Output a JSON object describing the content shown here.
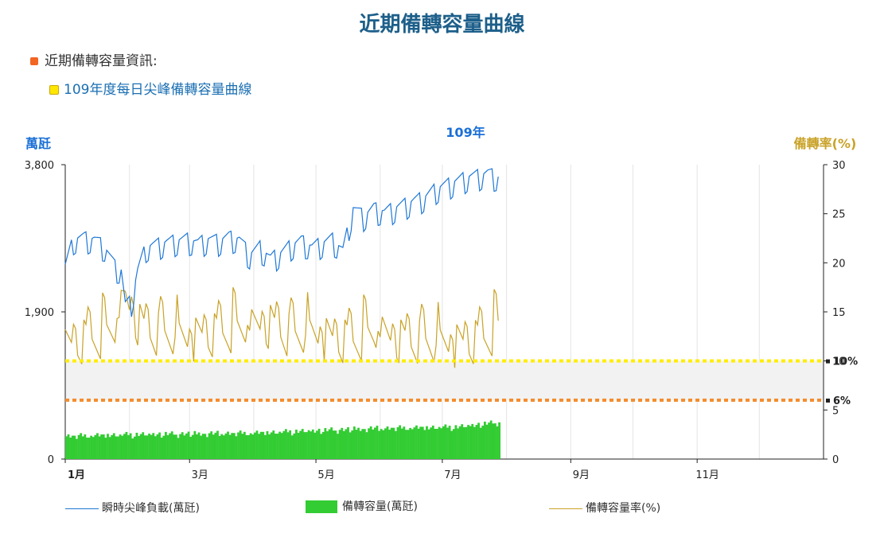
{
  "page": {
    "title": "近期備轉容量曲線",
    "info_label": "近期備轉容量資訊:",
    "sub_link": "109年度每日尖峰備轉容量曲線"
  },
  "colors": {
    "load_line": "#1f78d6",
    "reserve_bar": "#33cc33",
    "rate_line": "#c9a227",
    "line_10pct": "#ffee00",
    "line_6pct": "#f58d2e",
    "band": "#f2f2f2"
  },
  "chart_data": {
    "type": "bar+line",
    "title": "109年",
    "left_axis_label": "萬瓩",
    "right_axis_label": "備轉率(%)",
    "left_ylim": [
      0,
      3800
    ],
    "left_ticks": [
      "0",
      "1,900",
      "3,800"
    ],
    "right_ylim": [
      0,
      30
    ],
    "right_ticks": [
      "0",
      "5",
      "10",
      "15",
      "20",
      "25",
      "30"
    ],
    "x_ticks": [
      "1月",
      "3月",
      "5月",
      "7月",
      "9月",
      "11月"
    ],
    "reference_lines": [
      {
        "label": "10%",
        "value": 10
      },
      {
        "label": "6%",
        "value": 6
      }
    ],
    "grid": true,
    "legend_position": "bottom",
    "series": [
      {
        "name": "瞬時尖峰負載(萬瓩)",
        "axis": "left",
        "kind": "line",
        "anchors": [
          [
            1,
            2550
          ],
          [
            5,
            2900
          ],
          [
            10,
            2920
          ],
          [
            15,
            2900
          ],
          [
            20,
            2800
          ],
          [
            25,
            2550
          ],
          [
            28,
            2500
          ],
          [
            30,
            2050
          ],
          [
            33,
            2100
          ],
          [
            36,
            2500
          ],
          [
            40,
            2800
          ],
          [
            45,
            2830
          ],
          [
            50,
            2860
          ],
          [
            55,
            2880
          ],
          [
            60,
            2900
          ],
          [
            65,
            2850
          ],
          [
            70,
            2900
          ],
          [
            75,
            2880
          ],
          [
            80,
            2930
          ],
          [
            85,
            2900
          ],
          [
            90,
            2700
          ],
          [
            95,
            2800
          ],
          [
            100,
            2650
          ],
          [
            105,
            2720
          ],
          [
            110,
            2820
          ],
          [
            115,
            2880
          ],
          [
            120,
            2800
          ],
          [
            125,
            2850
          ],
          [
            130,
            2900
          ],
          [
            135,
            2750
          ],
          [
            140,
            3300
          ],
          [
            145,
            3200
          ],
          [
            150,
            3300
          ],
          [
            155,
            3250
          ],
          [
            160,
            3300
          ],
          [
            165,
            3350
          ],
          [
            170,
            3400
          ],
          [
            175,
            3450
          ],
          [
            180,
            3550
          ],
          [
            185,
            3600
          ],
          [
            190,
            3650
          ],
          [
            195,
            3700
          ],
          [
            200,
            3720
          ],
          [
            205,
            3750
          ],
          [
            210,
            3700
          ]
        ]
      },
      {
        "name": "備轉容量(萬瓩)",
        "axis": "left",
        "kind": "bar",
        "anchors": [
          [
            1,
            300
          ],
          [
            30,
            320
          ],
          [
            60,
            330
          ],
          [
            90,
            340
          ],
          [
            110,
            360
          ],
          [
            130,
            380
          ],
          [
            150,
            400
          ],
          [
            170,
            410
          ],
          [
            190,
            420
          ],
          [
            210,
            480
          ]
        ]
      },
      {
        "name": "備轉容量率(%)",
        "axis": "right",
        "kind": "line",
        "anchors": [
          [
            1,
            11
          ],
          [
            10,
            12
          ],
          [
            20,
            12.5
          ],
          [
            25,
            13
          ],
          [
            28,
            15
          ],
          [
            30,
            16
          ],
          [
            35,
            14
          ],
          [
            40,
            13
          ],
          [
            50,
            12.5
          ],
          [
            60,
            12
          ],
          [
            70,
            12.5
          ],
          [
            80,
            13
          ],
          [
            90,
            13
          ],
          [
            100,
            13.5
          ],
          [
            110,
            12.5
          ],
          [
            120,
            12.5
          ],
          [
            130,
            12
          ],
          [
            140,
            12
          ],
          [
            150,
            12.5
          ],
          [
            160,
            12
          ],
          [
            170,
            12
          ],
          [
            180,
            11.5
          ],
          [
            190,
            11.5
          ],
          [
            200,
            12
          ],
          [
            210,
            13
          ]
        ]
      }
    ]
  },
  "legend": {
    "load": "瞬時尖峰負載(萬瓩)",
    "reserve": "備轉容量(萬瓩)",
    "rate": "備轉容量率(%)"
  }
}
